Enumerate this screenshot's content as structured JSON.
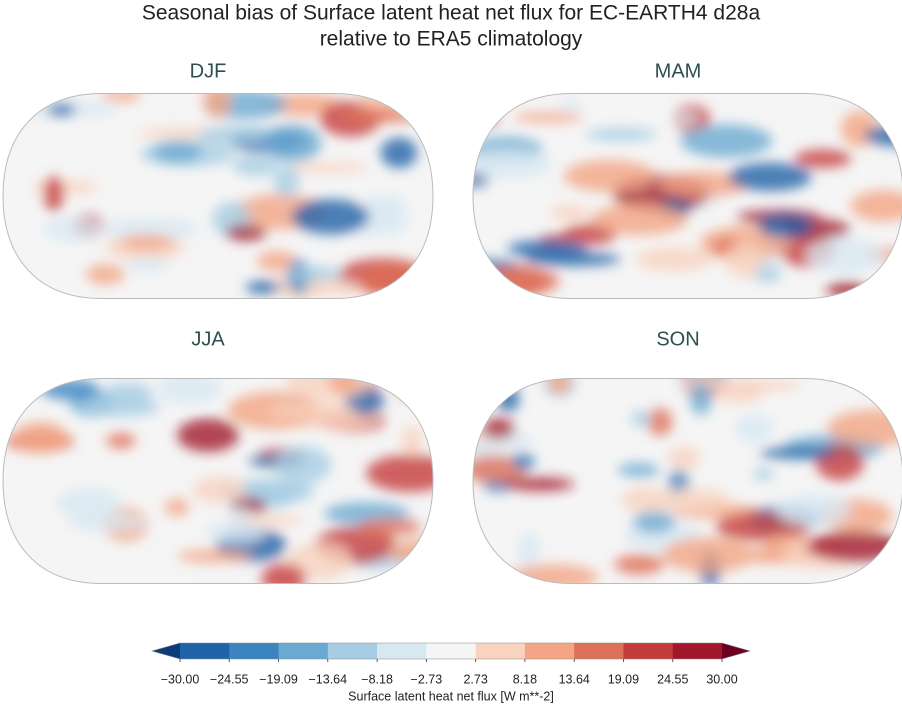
{
  "figure": {
    "title": [
      "Seasonal bias of Surface latent heat net flux for EC-EARTH4 d28a",
      "relative to ERA5 climatology"
    ],
    "panels": [
      "DJF",
      "MAM",
      "JJA",
      "SON"
    ],
    "colorbar": {
      "label": "Surface latent heat net flux [W m**-2]",
      "lim": [
        -30,
        30
      ],
      "ticks": [
        {
          "value": -30,
          "label": "−30.00"
        },
        {
          "value": -24.55,
          "label": "−24.55"
        },
        {
          "value": -19.09,
          "label": "−19.09"
        },
        {
          "value": -13.64,
          "label": "−13.64"
        },
        {
          "value": -8.18,
          "label": "−8.18"
        },
        {
          "value": -2.73,
          "label": "−2.73"
        },
        {
          "value": 2.73,
          "label": "2.73"
        },
        {
          "value": 8.18,
          "label": "8.18"
        },
        {
          "value": 13.64,
          "label": "13.64"
        },
        {
          "value": 19.09,
          "label": "19.09"
        },
        {
          "value": 24.55,
          "label": "24.55"
        },
        {
          "value": 30,
          "label": "30.00"
        }
      ],
      "colors": [
        "#2062a8",
        "#3b84bf",
        "#6aa9d1",
        "#a6cde3",
        "#d8e8f2",
        "#f5f5f5",
        "#f8d3bf",
        "#f3a585",
        "#de6f59",
        "#c53c3c",
        "#a3172d"
      ],
      "extend_colors": [
        "#0a3c78",
        "#6b0021"
      ]
    }
  }
}
